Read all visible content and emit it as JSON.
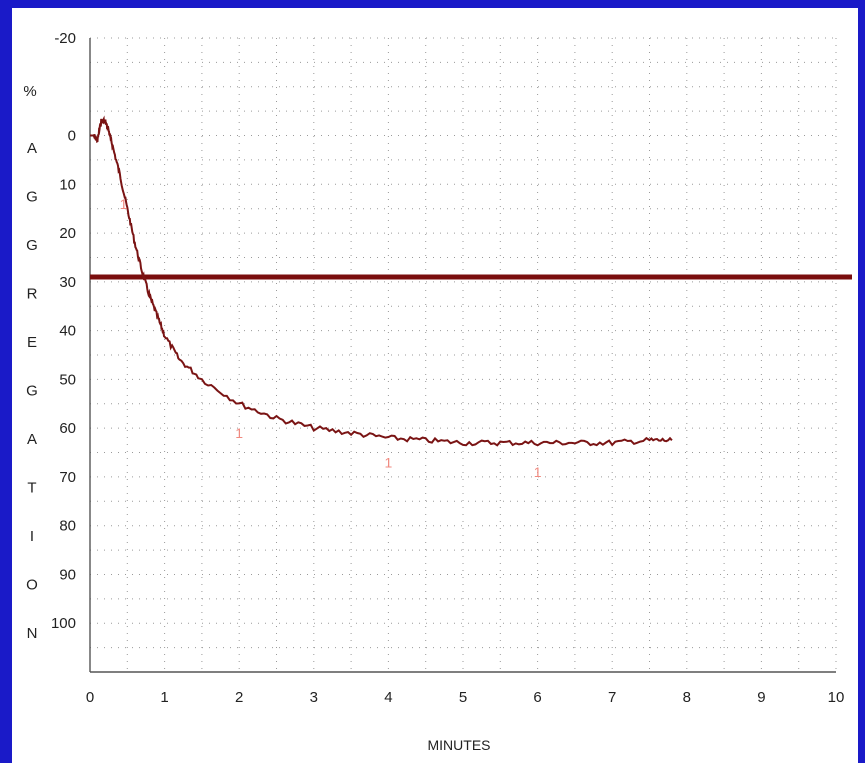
{
  "chart_data": {
    "type": "line",
    "title": "",
    "xlabel": "MINUTES",
    "ylabel_unit": "%",
    "ylabel": "AGGREGATION",
    "xlim": [
      0,
      10
    ],
    "ylim": [
      -20,
      110
    ],
    "y_inverted": true,
    "x_ticks": [
      "0",
      "1",
      "2",
      "3",
      "4",
      "5",
      "6",
      "7",
      "8",
      "9",
      "10"
    ],
    "y_ticks": [
      "-20",
      "0",
      "10",
      "20",
      "30",
      "40",
      "50",
      "60",
      "70",
      "80",
      "90",
      "100"
    ],
    "grid": "dotted",
    "colors": {
      "background": "#1a1ac8",
      "line": "#7a1414",
      "threshold": "#7a0e0e",
      "marker": "#f08a80"
    },
    "threshold_line": {
      "y": 29
    },
    "series": [
      {
        "x": [
          0,
          0.05,
          0.1,
          0.15,
          0.2,
          0.25,
          0.3,
          0.4,
          0.5,
          0.6,
          0.7,
          0.8,
          0.9,
          1.0,
          1.2,
          1.5,
          2.0,
          2.5,
          3.0,
          3.5,
          4.0,
          4.5,
          5.0,
          5.5,
          6.0,
          6.5,
          7.0,
          7.5,
          7.8
        ],
        "values": [
          0,
          0,
          1,
          -3,
          -3,
          -1,
          2,
          8,
          15,
          22,
          28,
          33,
          37,
          41,
          46,
          50,
          55,
          58,
          60,
          61,
          62,
          62.5,
          63,
          63,
          63,
          63,
          63,
          62.5,
          62.5
        ]
      }
    ],
    "markers": [
      {
        "x": 0.45,
        "y": 14,
        "label": "1"
      },
      {
        "x": 2.0,
        "y": 61,
        "label": "1"
      },
      {
        "x": 4.0,
        "y": 67,
        "label": "1"
      },
      {
        "x": 6.0,
        "y": 69,
        "label": "1"
      }
    ]
  }
}
